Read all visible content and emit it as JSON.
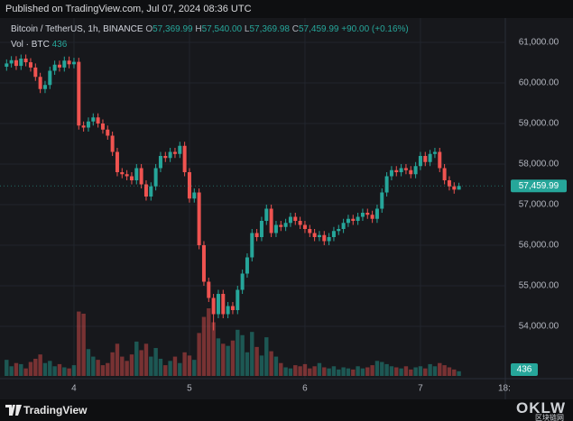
{
  "header": {
    "published": "Published on TradingView.com, Jul 07, 2024 08:36 UTC"
  },
  "legend": {
    "symbol": "Bitcoin / TetherUS, 1h, BINANCE",
    "ohlc": [
      {
        "key": "O",
        "value": "57,369.99"
      },
      {
        "key": "H",
        "value": "57,540.00"
      },
      {
        "key": "L",
        "value": "57,369.98"
      },
      {
        "key": "C",
        "value": "57,459.99"
      }
    ],
    "change": "+90.00 (+0.16%)",
    "volume_key": "Vol · BTC",
    "volume": "436"
  },
  "footer": {
    "brand": "TradingView",
    "watermark": "OKLW",
    "watermark_sub": "区块链网"
  },
  "chart_data": {
    "type": "candlestick",
    "categories": [
      null,
      null,
      null,
      null,
      null,
      null,
      null,
      null,
      null,
      null,
      null,
      null,
      null,
      null,
      "4",
      null,
      null,
      null,
      null,
      null,
      null,
      null,
      null,
      null,
      null,
      null,
      null,
      null,
      null,
      null,
      null,
      null,
      null,
      null,
      null,
      null,
      null,
      null,
      "5",
      null,
      null,
      null,
      null,
      null,
      null,
      null,
      null,
      null,
      null,
      null,
      null,
      null,
      null,
      null,
      null,
      null,
      null,
      null,
      null,
      null,
      null,
      null,
      "6",
      null,
      null,
      null,
      null,
      null,
      null,
      null,
      null,
      null,
      null,
      null,
      null,
      null,
      null,
      null,
      null,
      null,
      null,
      null,
      null,
      null,
      null,
      null,
      "7",
      null,
      null,
      null,
      null,
      null,
      null,
      null,
      null
    ],
    "x_edge_label": "18:",
    "open": [
      60400,
      60480,
      60560,
      60420,
      60600,
      60510,
      60380,
      60150,
      59850,
      59950,
      60300,
      60450,
      60380,
      60550,
      60460,
      60520,
      58950,
      58900,
      59050,
      59150,
      59000,
      58850,
      58700,
      58300,
      57800,
      57750,
      57700,
      57600,
      57900,
      57500,
      57200,
      57450,
      57900,
      58200,
      58150,
      58300,
      58250,
      58450,
      57800,
      57150,
      57300,
      56000,
      55100,
      54700,
      54300,
      54800,
      54300,
      54500,
      54400,
      54900,
      55300,
      55700,
      56300,
      56200,
      56600,
      56900,
      56300,
      56500,
      56450,
      56550,
      56700,
      56600,
      56500,
      56400,
      56300,
      56200,
      56250,
      56100,
      56200,
      56350,
      56400,
      56550,
      56650,
      56600,
      56700,
      56800,
      56750,
      56650,
      56900,
      57300,
      57700,
      57850,
      57800,
      57900,
      57850,
      57750,
      57950,
      58200,
      58050,
      58250,
      58300,
      57900,
      57600,
      57450,
      57369.99
    ],
    "high": [
      60580,
      60660,
      60660,
      60700,
      60700,
      60610,
      60480,
      60250,
      60050,
      60400,
      60550,
      60550,
      60650,
      60650,
      60620,
      60620,
      59050,
      59150,
      59250,
      59250,
      59100,
      58950,
      58800,
      58400,
      57900,
      57850,
      57800,
      58000,
      58000,
      57600,
      57550,
      58000,
      58300,
      58300,
      58400,
      58400,
      58550,
      58550,
      57900,
      57400,
      57400,
      56100,
      55200,
      54800,
      54900,
      54900,
      54600,
      54600,
      55000,
      55400,
      55800,
      56400,
      56400,
      56700,
      57000,
      57000,
      56600,
      56600,
      56650,
      56800,
      56800,
      56700,
      56600,
      56500,
      56400,
      56350,
      56350,
      56300,
      56450,
      56500,
      56650,
      56750,
      56750,
      56800,
      56900,
      56900,
      56850,
      57000,
      57400,
      57800,
      57950,
      57950,
      58000,
      58000,
      57950,
      58050,
      58300,
      58300,
      58350,
      58400,
      58400,
      58000,
      57700,
      57550,
      57540
    ],
    "low": [
      60300,
      60380,
      60320,
      60320,
      60410,
      60280,
      60050,
      59750,
      59750,
      59850,
      60200,
      60280,
      60280,
      60360,
      60360,
      58850,
      58800,
      58800,
      58950,
      58900,
      58750,
      58600,
      58200,
      57700,
      57650,
      57600,
      57500,
      57500,
      57400,
      57100,
      57100,
      57350,
      57800,
      58050,
      58050,
      58150,
      58150,
      57700,
      57050,
      57050,
      55900,
      55000,
      54600,
      53900,
      54200,
      54200,
      54200,
      54300,
      54300,
      54800,
      55200,
      55600,
      56100,
      56100,
      56500,
      56200,
      56200,
      56350,
      56350,
      56450,
      56500,
      56400,
      56300,
      56200,
      56100,
      56100,
      56000,
      56000,
      56100,
      56250,
      56300,
      56450,
      56500,
      56500,
      56600,
      56650,
      56550,
      56550,
      56800,
      57200,
      57600,
      57700,
      57700,
      57750,
      57650,
      57650,
      57850,
      57950,
      57950,
      58150,
      57800,
      57500,
      57350,
      57270,
      57369.98
    ],
    "close": [
      60480,
      60560,
      60420,
      60600,
      60510,
      60380,
      60150,
      59850,
      59950,
      60300,
      60450,
      60380,
      60550,
      60460,
      60520,
      58950,
      58900,
      59050,
      59150,
      59000,
      58850,
      58700,
      58300,
      57800,
      57750,
      57700,
      57600,
      57900,
      57500,
      57200,
      57450,
      57900,
      58200,
      58150,
      58300,
      58250,
      58450,
      57800,
      57150,
      57300,
      56000,
      55100,
      54700,
      54300,
      54800,
      54300,
      54500,
      54400,
      54900,
      55300,
      55700,
      56300,
      56200,
      56600,
      56900,
      56300,
      56500,
      56450,
      56550,
      56700,
      56600,
      56500,
      56400,
      56300,
      56200,
      56250,
      56100,
      56200,
      56350,
      56400,
      56550,
      56650,
      56600,
      56700,
      56800,
      56750,
      56650,
      56900,
      57300,
      57700,
      57850,
      57800,
      57900,
      57850,
      57750,
      57950,
      58200,
      58050,
      58250,
      58300,
      57900,
      57600,
      57450,
      57369.99,
      57459.99
    ],
    "volume": [
      1500,
      900,
      1200,
      1100,
      700,
      1300,
      1600,
      2000,
      1200,
      1400,
      900,
      1100,
      800,
      700,
      1000,
      6000,
      5800,
      2500,
      1800,
      1500,
      1000,
      1200,
      2200,
      3000,
      1800,
      1400,
      2000,
      3200,
      2400,
      3000,
      1800,
      2600,
      1600,
      1000,
      1400,
      1800,
      1200,
      2200,
      1900,
      1500,
      4000,
      5500,
      6300,
      5000,
      3500,
      3000,
      2800,
      3300,
      4300,
      3800,
      2200,
      4100,
      2700,
      1900,
      3600,
      2300,
      1800,
      1200,
      800,
      700,
      1000,
      900,
      1100,
      700,
      900,
      1200,
      800,
      700,
      900,
      600,
      800,
      700,
      600,
      900,
      700,
      800,
      1000,
      1400,
      1300,
      1100,
      900,
      800,
      700,
      900,
      600,
      800,
      900,
      700,
      1100,
      900,
      1200,
      1000,
      800,
      600,
      436
    ],
    "up_color": "#26a69a",
    "down_color": "#ef5350",
    "ylim": [
      52711,
      61600
    ],
    "yticks": [
      {
        "value": 54000,
        "label": "54,000.00"
      },
      {
        "value": 55000,
        "label": "55,000.00"
      },
      {
        "value": 56000,
        "label": "56,000.00"
      },
      {
        "value": 57000,
        "label": "57,000.00"
      },
      {
        "value": 58000,
        "label": "58,000.00"
      },
      {
        "value": 59000,
        "label": "59,000.00"
      },
      {
        "value": 60000,
        "label": "60,000.00"
      },
      {
        "value": 61000,
        "label": "61,000.00"
      }
    ],
    "last_price": {
      "value": 57459.99,
      "label": "57,459.99"
    },
    "last_volume": {
      "value": 436,
      "label": "436"
    },
    "grid": true
  }
}
